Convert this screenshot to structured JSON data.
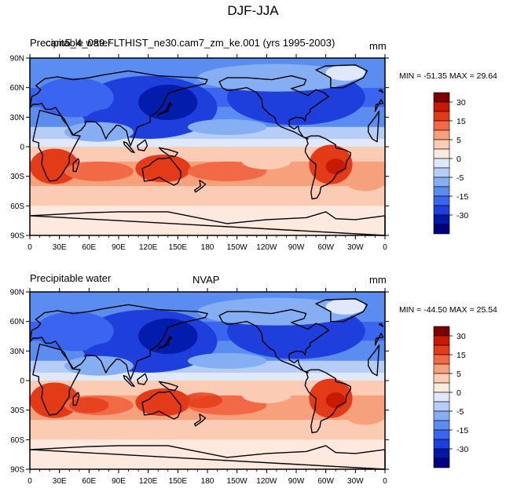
{
  "title": "DJF-JJA",
  "colorbar_colors": [
    "#7f0000",
    "#c81a00",
    "#e33a17",
    "#f26a45",
    "#f7a07c",
    "#fccbb4",
    "#fde9de",
    "#dfe9fb",
    "#b5cdf7",
    "#86aef2",
    "#5b8cef",
    "#3a66ef",
    "#1f3fdd",
    "#0018a6",
    "#000080"
  ],
  "colorbar_labels": [
    "30",
    "15",
    "5",
    "0",
    "-5",
    "-15",
    "-30"
  ],
  "panels": [
    {
      "left_label_overlap_a": "Precipitable water",
      "left_label_overlap_b": "cam5_4_089.FLTHIST_ne30.cam7_zm_ke.001 (yrs 1995-2003)",
      "center_label": "",
      "units": "mm",
      "minmax": "MIN = -51.35 MAX =  29.64"
    },
    {
      "left_label": "Precipitable water",
      "center_label": "NVAP",
      "units": "mm",
      "minmax": "MIN = -44.50 MAX =  25.54"
    }
  ],
  "lat_ticks": [
    "90N",
    "60N",
    "30N",
    "0",
    "30S",
    "60S",
    "90S"
  ],
  "lon_ticks": [
    "0",
    "30E",
    "60E",
    "90E",
    "120E",
    "150E",
    "180",
    "150W",
    "120W",
    "90W",
    "60W",
    "30W",
    "0"
  ],
  "map_data": {
    "projection": "cylindrical equidistant",
    "lon_range": [
      0,
      360
    ],
    "lat_range": [
      -90,
      90
    ],
    "field": "Precipitable water difference DJF-JJA",
    "units": "mm",
    "contour_levels": [
      -30,
      -25,
      -20,
      -15,
      -10,
      -5,
      -2.5,
      0,
      2.5,
      5,
      10,
      15,
      20,
      25,
      30
    ]
  }
}
